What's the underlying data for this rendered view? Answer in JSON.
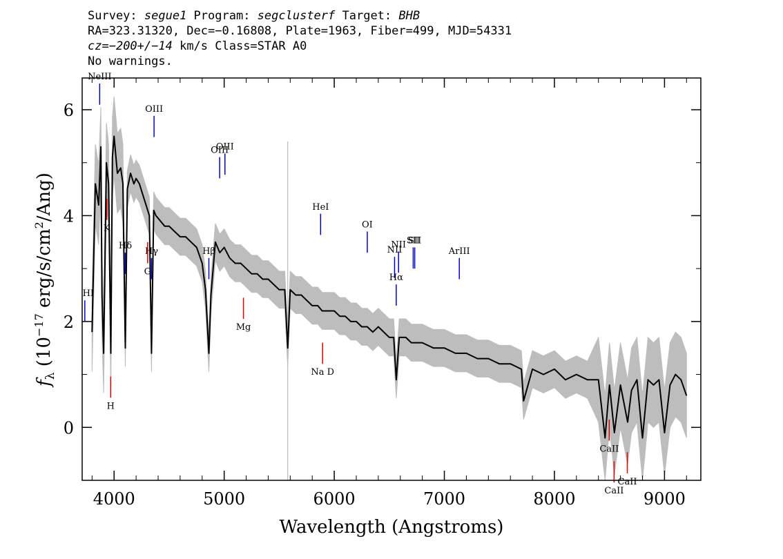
{
  "header": {
    "line1_prefix": "Survey: ",
    "survey": "segue1",
    "program_prefix": " Program: ",
    "program": "segclusterf",
    "target_prefix": " Target: ",
    "target": "BHB",
    "line2": "RA=323.31320, Dec=−0.16808, Plate=1963, Fiber=499, MJD=54331",
    "cz_prefix": "cz=",
    "cz_value": "−200+/−14",
    "cz_suffix": " km/s Class=STAR A0",
    "line4": "No warnings."
  },
  "colors": {
    "flux": "#000000",
    "error": "#bdbdbd",
    "emission": "#0000c8",
    "absorption": "#dc0000"
  },
  "chart_data": {
    "type": "line",
    "xlabel": "Wavelength (Angstroms)",
    "ylabel": "f_λ (10^-17 erg/s/cm^2/Ang)",
    "xlim": [
      3710,
      9330
    ],
    "ylim": [
      -1.0,
      6.6
    ],
    "xticks": [
      4000,
      5000,
      6000,
      7000,
      8000,
      9000
    ],
    "yticks": [
      0,
      2,
      4,
      6
    ],
    "series": [
      {
        "x": [
          3800,
          3830,
          3860,
          3880,
          3890,
          3905,
          3930,
          3950,
          3970,
          3985,
          4000,
          4030,
          4060,
          4080,
          4102,
          4120,
          4150,
          4180,
          4200,
          4230,
          4260,
          4290,
          4320,
          4340,
          4360,
          4380,
          4420,
          4460,
          4500,
          4550,
          4600,
          4650,
          4700,
          4750,
          4800,
          4830,
          4861,
          4880,
          4920,
          4960,
          5000,
          5050,
          5100,
          5150,
          5200,
          5250,
          5300,
          5350,
          5400,
          5450,
          5500,
          5550,
          5577,
          5600,
          5650,
          5700,
          5750,
          5800,
          5850,
          5890,
          5950,
          6000,
          6050,
          6100,
          6150,
          6200,
          6250,
          6300,
          6350,
          6400,
          6450,
          6500,
          6540,
          6563,
          6590,
          6650,
          6700,
          6800,
          6900,
          7000,
          7100,
          7200,
          7300,
          7400,
          7500,
          7600,
          7700,
          7720,
          7800,
          7900,
          8000,
          8100,
          8200,
          8300,
          8400,
          8460,
          8500,
          8545,
          8600,
          8665,
          8700,
          8750,
          8800,
          8850,
          8900,
          8950,
          9000,
          9050,
          9100,
          9150,
          9200
        ],
        "y": [
          1.8,
          4.6,
          4.2,
          5.3,
          2.5,
          1.4,
          5.0,
          4.6,
          1.4,
          5.1,
          5.5,
          4.8,
          4.9,
          4.6,
          1.5,
          4.5,
          4.8,
          4.6,
          4.7,
          4.6,
          4.4,
          4.2,
          4.0,
          1.4,
          4.1,
          4.0,
          3.9,
          3.8,
          3.8,
          3.7,
          3.6,
          3.6,
          3.5,
          3.4,
          3.1,
          2.6,
          1.4,
          2.5,
          3.5,
          3.3,
          3.4,
          3.2,
          3.1,
          3.1,
          3.0,
          2.9,
          2.9,
          2.8,
          2.8,
          2.7,
          2.6,
          2.6,
          1.5,
          2.6,
          2.5,
          2.5,
          2.4,
          2.3,
          2.3,
          2.2,
          2.2,
          2.2,
          2.1,
          2.1,
          2.0,
          2.0,
          1.9,
          1.9,
          1.8,
          1.9,
          1.8,
          1.7,
          1.7,
          0.9,
          1.7,
          1.7,
          1.6,
          1.6,
          1.5,
          1.5,
          1.4,
          1.4,
          1.3,
          1.3,
          1.2,
          1.2,
          1.1,
          0.5,
          1.1,
          1.0,
          1.1,
          0.9,
          1.0,
          0.9,
          0.9,
          -0.2,
          0.8,
          -0.1,
          0.8,
          0.1,
          0.7,
          0.9,
          -0.2,
          0.9,
          0.8,
          0.9,
          -0.1,
          0.8,
          1.0,
          0.9,
          0.6
        ]
      }
    ],
    "emission_lines": [
      {
        "name": "HI",
        "x": 3734
      },
      {
        "name": "NeIII",
        "x": 3869
      },
      {
        "name": "Hδ",
        "x": 4102
      },
      {
        "name": "Hγ",
        "x": 4340
      },
      {
        "name": "OIII",
        "x": 4363
      },
      {
        "name": "Hβ",
        "x": 4861
      },
      {
        "name": "OIII",
        "x": 4959
      },
      {
        "name": "OIII",
        "x": 5007
      },
      {
        "name": "HeI",
        "x": 5876
      },
      {
        "name": "OI",
        "x": 6300
      },
      {
        "name": "NII",
        "x": 6548
      },
      {
        "name": "Hα",
        "x": 6563
      },
      {
        "name": "NII",
        "x": 6584
      },
      {
        "name": "SII",
        "x": 6717
      },
      {
        "name": "SII",
        "x": 6731
      },
      {
        "name": "ArIII",
        "x": 7136
      }
    ],
    "absorption_lines": [
      {
        "name": "K",
        "x": 3934
      },
      {
        "name": "H",
        "x": 3969
      },
      {
        "name": "G",
        "x": 4305
      },
      {
        "name": "Mg",
        "x": 5175
      },
      {
        "name": "Na D",
        "x": 5894
      },
      {
        "name": "CaII",
        "x": 8498
      },
      {
        "name": "CaII",
        "x": 8542
      },
      {
        "name": "CaII",
        "x": 8662
      }
    ]
  }
}
